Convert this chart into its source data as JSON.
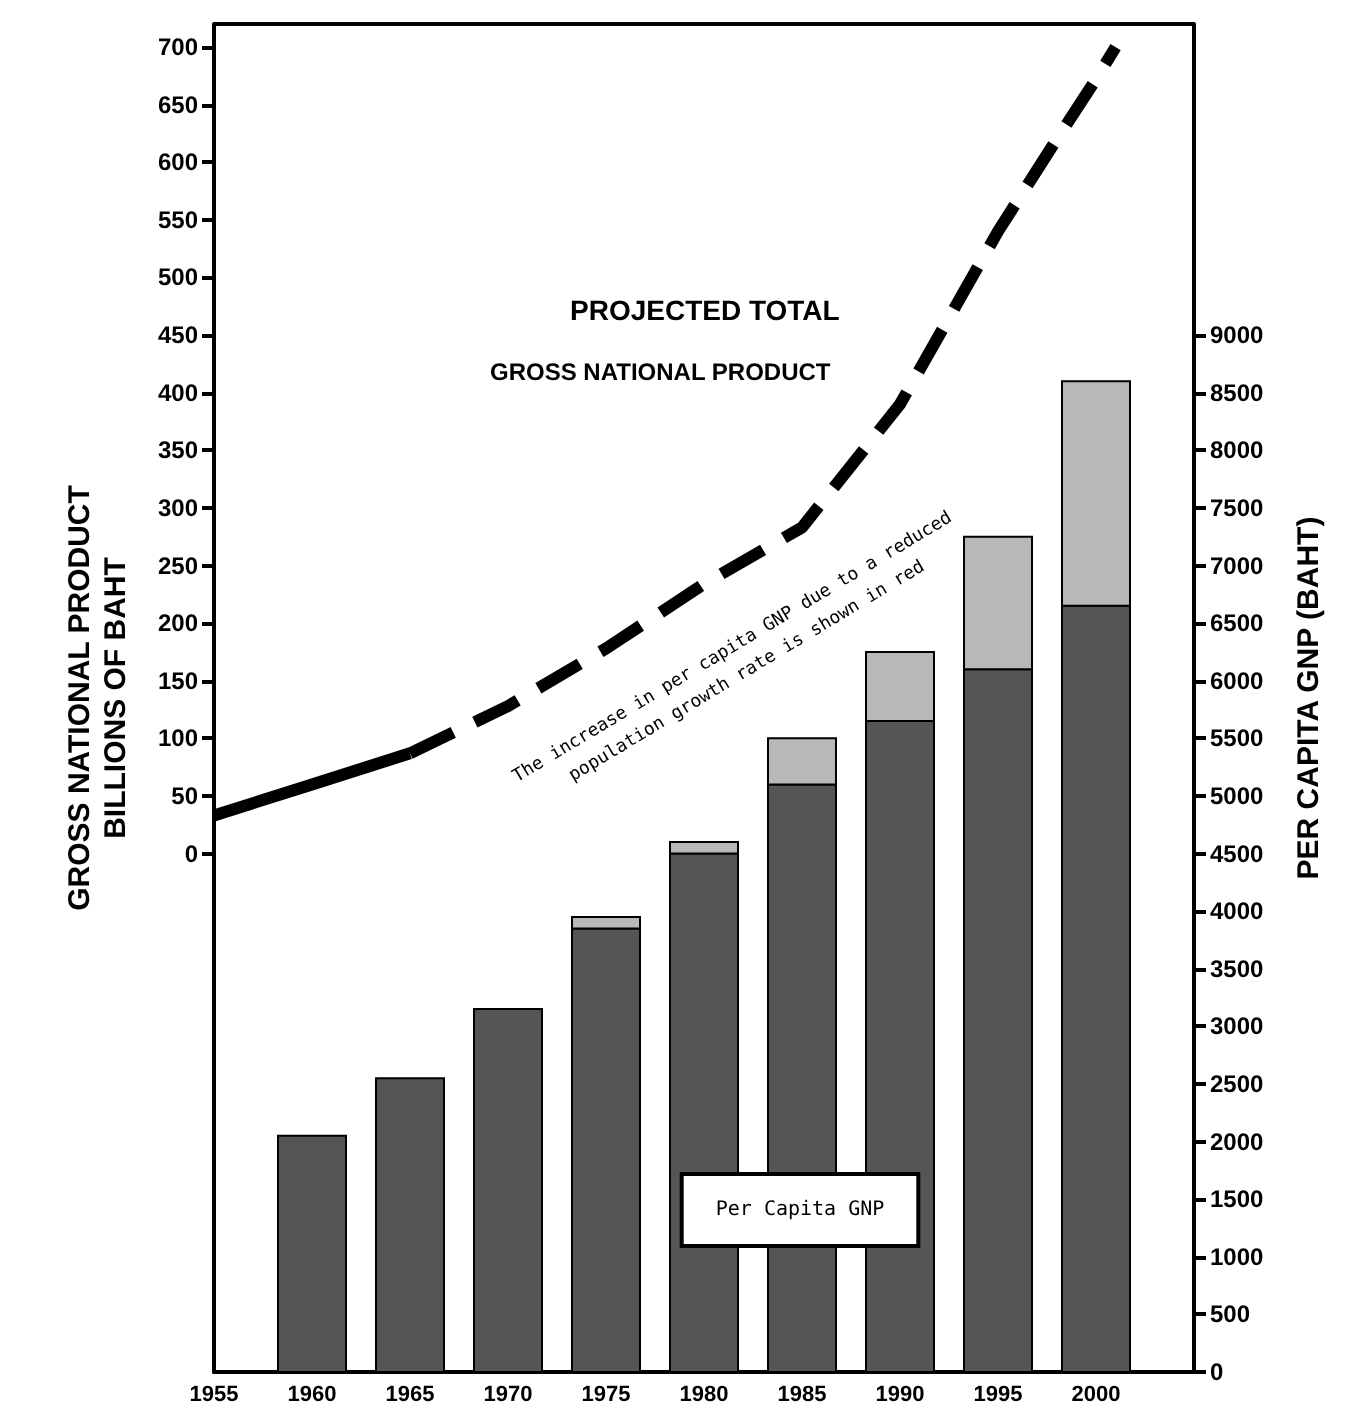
{
  "chart_data": {
    "type": "bar",
    "x": [
      1960,
      1965,
      1970,
      1975,
      1980,
      1985,
      1990,
      1995,
      2000
    ],
    "stacked": true,
    "xlim": [
      1955,
      2005
    ],
    "xticks": [
      1955,
      1960,
      1965,
      1970,
      1975,
      1980,
      1985,
      1990,
      1995,
      2000
    ],
    "ylim": [
      -450,
      720
    ],
    "yticks": [
      0,
      50,
      100,
      150,
      200,
      250,
      300,
      350,
      400,
      450,
      500,
      550,
      600,
      650,
      700
    ],
    "y2lim": [
      0,
      11700
    ],
    "y2ticks": [
      0,
      500,
      1000,
      1500,
      2000,
      2500,
      3000,
      3500,
      4000,
      4500,
      5000,
      5500,
      6000,
      6500,
      7000,
      7500,
      8000,
      8500,
      9000
    ],
    "ylabel": "GROSS NATIONAL PRODUCT\nBILLIONS OF BAHT",
    "y2label": "PER CAPITA GNP (BAHT)",
    "marker": "none",
    "annotations": [
      "PROJECTED TOTAL",
      "GROSS NATIONAL PRODUCT",
      "The increase in per capita GNP due to a reduced\npopulation growth rate is shown in red",
      "Per Capita GNP"
    ],
    "series": [
      {
        "axis": "y2",
        "color": "#555555",
        "values": [
          2050,
          2550,
          3150,
          3850,
          4500,
          5100,
          5650,
          6100,
          6650
        ]
      },
      {
        "axis": "y2",
        "color": "#b8b8b8",
        "values": [
          0,
          0,
          0,
          100,
          100,
          400,
          600,
          1150,
          1950
        ]
      },
      {
        "type": "line",
        "x": [
          1955,
          1960,
          1965
        ],
        "values": [
          33,
          60,
          87
        ],
        "color": "#000000",
        "line_style": "solid"
      },
      {
        "type": "line",
        "x": [
          1965,
          1970,
          1975,
          1980,
          1985,
          1990,
          1995,
          1998,
          2000,
          2001
        ],
        "values": [
          87,
          128,
          178,
          234,
          283,
          390,
          540,
          620,
          672,
          700
        ],
        "color": "#000000",
        "line_style": "dashed"
      }
    ]
  }
}
